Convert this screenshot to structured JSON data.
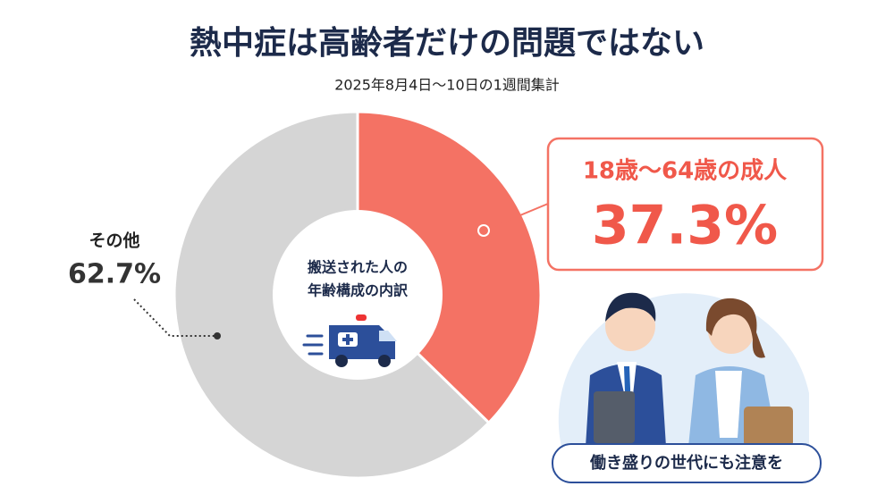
{
  "chart_data": {
    "type": "pie",
    "title": "熱中症は高齢者だけの問題ではない",
    "subtitle": "2025年8月4日～10日の1週間集計",
    "center_label": [
      "搬送された人の",
      "年齢構成の内訳"
    ],
    "categories": [
      "18歳～64歳の成人",
      "その他"
    ],
    "values": [
      37.3,
      62.7
    ],
    "value_labels": [
      "37.3%",
      "62.7%"
    ],
    "colors": [
      "#f47264",
      "#d5d5d5"
    ],
    "donut": true
  },
  "banner": "働き盛りの世代にも注意を"
}
